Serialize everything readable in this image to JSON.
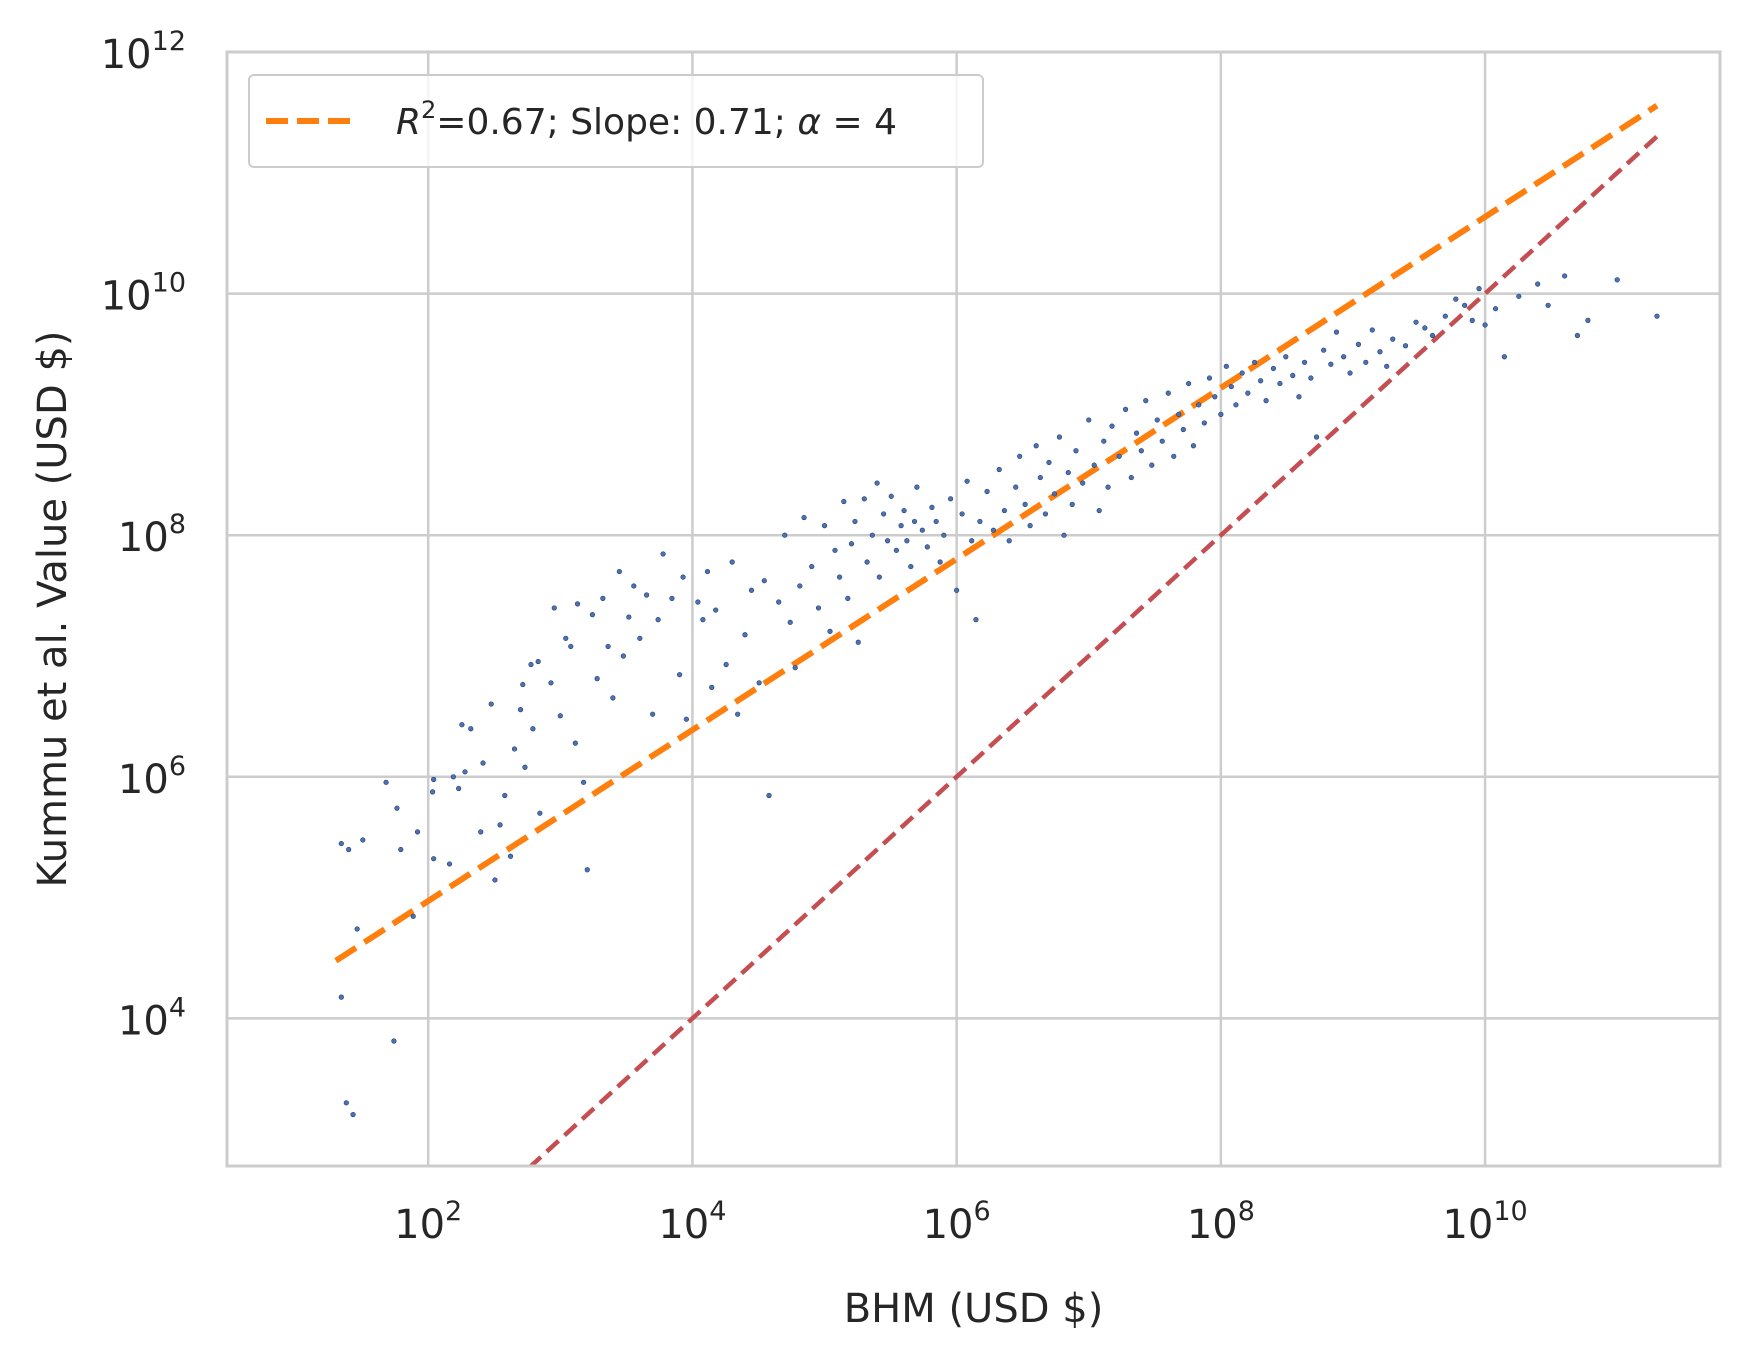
{
  "chart_data": {
    "type": "scatter",
    "title": "",
    "xlabel": "BHM (USD $)",
    "ylabel": "Kummu et al. Value (USD $)",
    "xscale": "log",
    "yscale": "log",
    "xlim": [
      3,
      600000000000.0
    ],
    "ylim": [
      600,
      1000000000000.0
    ],
    "x_ticks": [
      {
        "value": 100,
        "base": "10",
        "exp": "2"
      },
      {
        "value": 10000,
        "base": "10",
        "exp": "4"
      },
      {
        "value": 1000000,
        "base": "10",
        "exp": "6"
      },
      {
        "value": 100000000,
        "base": "10",
        "exp": "8"
      },
      {
        "value": 10000000000,
        "base": "10",
        "exp": "10"
      }
    ],
    "y_ticks": [
      {
        "value": 10000,
        "base": "10",
        "exp": "4"
      },
      {
        "value": 1000000,
        "base": "10",
        "exp": "6"
      },
      {
        "value": 100000000,
        "base": "10",
        "exp": "8"
      },
      {
        "value": 10000000000,
        "base": "10",
        "exp": "10"
      },
      {
        "value": 1000000000000,
        "base": "10",
        "exp": "12"
      }
    ],
    "grid": true,
    "legend_position": "top-left",
    "legend": {
      "r2_prefix": "R",
      "r2_sup": "2",
      "text": "=0.67; Slope: 0.71; ",
      "alpha_symbol": "α",
      "alpha_text": " = 4"
    },
    "colors": {
      "points": "#4c72b0",
      "fit_line": "#ff7f0e",
      "identity_line": "#c44e52",
      "grid": "#cccccc",
      "frame": "#cccccc"
    },
    "series": [
      {
        "type": "line",
        "style": "dashed",
        "x": [
          20,
          200000000000.0
        ],
        "y": [
          30000,
          360000000000
        ]
      },
      {
        "type": "line",
        "style": "dashed",
        "x": [
          580,
          200000000000.0
        ],
        "y": [
          580,
          200000000000
        ]
      },
      {
        "type": "scatter",
        "points": [
          [
            22,
            280000
          ],
          [
            25,
            250000
          ],
          [
            29,
            55000
          ],
          [
            32,
            300000
          ],
          [
            22,
            15000
          ],
          [
            24,
            2000
          ],
          [
            27,
            1600
          ],
          [
            48,
            900000
          ],
          [
            58,
            550000
          ],
          [
            62,
            250000
          ],
          [
            77,
            70000
          ],
          [
            83,
            350000
          ],
          [
            55,
            6500
          ],
          [
            110,
            210000
          ],
          [
            110,
            950000
          ],
          [
            108,
            750000
          ],
          [
            145,
            190000
          ],
          [
            155,
            1000000
          ],
          [
            170,
            800000
          ],
          [
            180,
            2700000
          ],
          [
            210,
            2500000
          ],
          [
            190,
            1100000
          ],
          [
            260,
            1300000
          ],
          [
            300,
            4000000
          ],
          [
            250,
            350000
          ],
          [
            320,
            140000
          ],
          [
            350,
            400000
          ],
          [
            380,
            700000
          ],
          [
            420,
            220000
          ],
          [
            450,
            1700000
          ],
          [
            500,
            3600000
          ],
          [
            540,
            1200000
          ],
          [
            520,
            5800000
          ],
          [
            600,
            8500000
          ],
          [
            620,
            2500000
          ],
          [
            700,
            500000
          ],
          [
            680,
            9000000
          ],
          [
            900,
            25000000
          ],
          [
            850,
            6000000
          ],
          [
            1000,
            3200000
          ],
          [
            1100,
            14000000
          ],
          [
            1200,
            12000000
          ],
          [
            1350,
            27000000
          ],
          [
            1300,
            1900000
          ],
          [
            1500,
            900000
          ],
          [
            1600,
            170000
          ],
          [
            1750,
            22000000
          ],
          [
            1900,
            6500000
          ],
          [
            2100,
            30000000
          ],
          [
            2300,
            12000000
          ],
          [
            2500,
            4500000
          ],
          [
            2800,
            50000000
          ],
          [
            3000,
            10000000
          ],
          [
            3300,
            21000000
          ],
          [
            3600,
            38000000
          ],
          [
            4000,
            14000000
          ],
          [
            4500,
            32000000
          ],
          [
            5000,
            3300000
          ],
          [
            5500,
            20000000
          ],
          [
            6000,
            70000000
          ],
          [
            7000,
            30000000
          ],
          [
            8000,
            7000000
          ],
          [
            8500,
            45000000
          ],
          [
            9000,
            3000000
          ],
          [
            11000,
            28000000
          ],
          [
            12000,
            20000000
          ],
          [
            13000,
            50000000
          ],
          [
            14000,
            5500000
          ],
          [
            15000,
            24000000
          ],
          [
            18000,
            8500000
          ],
          [
            20000,
            60000000
          ],
          [
            22000,
            3300000
          ],
          [
            25000,
            15000000
          ],
          [
            28000,
            35000000
          ],
          [
            32000,
            6000000
          ],
          [
            35000,
            42000000
          ],
          [
            38000,
            700000
          ],
          [
            45000,
            28000000
          ],
          [
            50000,
            100000000
          ],
          [
            55000,
            19000000
          ],
          [
            60000,
            8000000
          ],
          [
            65000,
            38000000
          ],
          [
            70000,
            140000000
          ],
          [
            80000,
            55000000
          ],
          [
            90000,
            25000000
          ],
          [
            100000,
            120000000
          ],
          [
            110000,
            16000000
          ],
          [
            120000,
            75000000
          ],
          [
            130000,
            45000000
          ],
          [
            140000,
            190000000
          ],
          [
            150000,
            30000000
          ],
          [
            160000,
            85000000
          ],
          [
            170000,
            130000000
          ],
          [
            180000,
            13000000
          ],
          [
            200000,
            200000000
          ],
          [
            210000,
            60000000
          ],
          [
            230000,
            100000000
          ],
          [
            250000,
            270000000
          ],
          [
            260000,
            45000000
          ],
          [
            280000,
            150000000
          ],
          [
            300000,
            90000000
          ],
          [
            320000,
            210000000
          ],
          [
            350000,
            75000000
          ],
          [
            380000,
            120000000
          ],
          [
            400000,
            160000000
          ],
          [
            420000,
            90000000
          ],
          [
            450000,
            55000000
          ],
          [
            480000,
            130000000
          ],
          [
            500000,
            250000000
          ],
          [
            550000,
            110000000
          ],
          [
            600000,
            80000000
          ],
          [
            650000,
            170000000
          ],
          [
            700000,
            130000000
          ],
          [
            750000,
            60000000
          ],
          [
            800000,
            100000000
          ],
          [
            900000,
            200000000
          ],
          [
            1000000,
            35000000
          ],
          [
            1100000,
            150000000
          ],
          [
            1200000,
            280000000
          ],
          [
            1300000,
            90000000
          ],
          [
            1400000,
            20000000
          ],
          [
            1500000,
            130000000
          ],
          [
            1700000,
            230000000
          ],
          [
            1900000,
            110000000
          ],
          [
            2100000,
            350000000
          ],
          [
            2300000,
            160000000
          ],
          [
            2500000,
            90000000
          ],
          [
            2800000,
            250000000
          ],
          [
            3000000,
            450000000
          ],
          [
            3300000,
            180000000
          ],
          [
            3600000,
            120000000
          ],
          [
            4000000,
            550000000
          ],
          [
            4300000,
            300000000
          ],
          [
            4700000,
            150000000
          ],
          [
            5000000,
            400000000
          ],
          [
            5500000,
            220000000
          ],
          [
            6000000,
            650000000
          ],
          [
            6500000,
            100000000
          ],
          [
            7000000,
            330000000
          ],
          [
            7500000,
            180000000
          ],
          [
            8000000,
            500000000
          ],
          [
            9000000,
            270000000
          ],
          [
            10000000,
            900000000
          ],
          [
            11000000,
            380000000
          ],
          [
            12000000,
            160000000
          ],
          [
            13000000,
            600000000
          ],
          [
            14000000,
            250000000
          ],
          [
            15000000,
            800000000
          ],
          [
            17000000,
            450000000
          ],
          [
            19000000,
            1100000000
          ],
          [
            21000000,
            300000000
          ],
          [
            23000000,
            700000000
          ],
          [
            25000000,
            500000000
          ],
          [
            27000000,
            1300000000
          ],
          [
            30000000,
            380000000
          ],
          [
            33000000,
            900000000
          ],
          [
            36000000,
            600000000
          ],
          [
            40000000,
            1500000000
          ],
          [
            44000000,
            450000000
          ],
          [
            48000000,
            1000000000
          ],
          [
            52000000,
            750000000
          ],
          [
            57000000,
            1800000000
          ],
          [
            62000000,
            550000000
          ],
          [
            68000000,
            1200000000
          ],
          [
            75000000,
            850000000
          ],
          [
            82000000,
            2000000000
          ],
          [
            90000000,
            1400000000
          ],
          [
            100000000,
            1000000000
          ],
          [
            110000000,
            2500000000
          ],
          [
            120000000,
            1700000000
          ],
          [
            130000000,
            1200000000
          ],
          [
            145000000,
            2200000000
          ],
          [
            160000000,
            1500000000
          ],
          [
            180000000,
            2700000000
          ],
          [
            200000000,
            1900000000
          ],
          [
            220000000,
            1300000000
          ],
          [
            250000000,
            2400000000
          ],
          [
            280000000,
            1800000000
          ],
          [
            310000000,
            3000000000
          ],
          [
            350000000,
            2100000000
          ],
          [
            390000000,
            1400000000
          ],
          [
            430000000,
            2700000000
          ],
          [
            480000000,
            2000000000
          ],
          [
            530000000,
            650000000
          ],
          [
            600000000,
            3400000000
          ],
          [
            680000000,
            2600000000
          ],
          [
            750000000,
            4800000000
          ],
          [
            850000000,
            3000000000
          ],
          [
            950000000,
            2200000000
          ],
          [
            1100000000,
            3800000000
          ],
          [
            1250000000,
            2700000000
          ],
          [
            1400000000,
            5000000000
          ],
          [
            1600000000,
            3300000000
          ],
          [
            1800000000,
            2500000000
          ],
          [
            2000000000,
            4200000000
          ],
          [
            2500000000,
            3700000000
          ],
          [
            3000000000,
            5800000000
          ],
          [
            3500000000,
            5200000000
          ],
          [
            4000000000,
            4500000000
          ],
          [
            5000000000,
            6500000000
          ],
          [
            6000000000,
            9000000000
          ],
          [
            7000000000,
            8000000000
          ],
          [
            8000000000,
            6000000000
          ],
          [
            9000000000,
            11000000000
          ],
          [
            10000000000,
            5500000000
          ],
          [
            12000000000,
            7500000000
          ],
          [
            14000000000,
            3000000000
          ],
          [
            18000000000,
            9500000000
          ],
          [
            25000000000,
            12000000000
          ],
          [
            30000000000,
            8000000000
          ],
          [
            40000000000,
            14000000000
          ],
          [
            50000000000,
            4500000000
          ],
          [
            60000000000,
            6000000000
          ],
          [
            100000000000,
            13000000000
          ],
          [
            200000000000,
            6500000000
          ]
        ]
      }
    ]
  }
}
